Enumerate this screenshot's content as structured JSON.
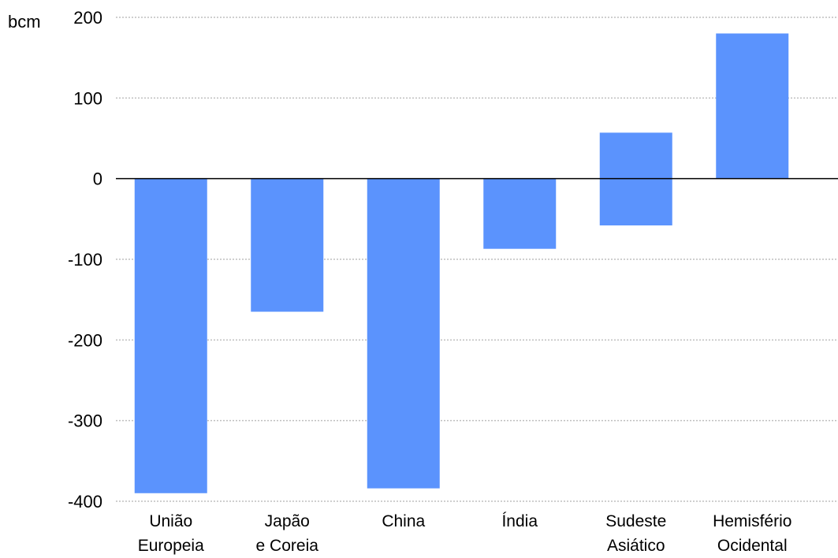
{
  "chart_data": {
    "type": "bar",
    "unit_label": "bcm",
    "categories": [
      [
        "União",
        "Europeia"
      ],
      [
        "Japão",
        "e Coreia"
      ],
      [
        "China"
      ],
      [
        "Índia"
      ],
      [
        "Sudeste",
        "Asiático"
      ],
      [
        "Hemisfério",
        "Ocidental"
      ]
    ],
    "series": [
      {
        "name": "",
        "segments": [
          [
            {
              "from": 0,
              "to": -390
            }
          ],
          [
            {
              "from": 0,
              "to": -165
            }
          ],
          [
            {
              "from": 0,
              "to": -384
            }
          ],
          [
            {
              "from": 0,
              "to": -87
            }
          ],
          [
            {
              "from": 0,
              "to": 57
            },
            {
              "from": 0,
              "to": -58
            }
          ],
          [
            {
              "from": 0,
              "to": 180
            }
          ]
        ]
      }
    ],
    "ylim": [
      -400,
      200
    ],
    "yticks": [
      -400,
      -300,
      -200,
      -100,
      0,
      100,
      200
    ],
    "ytick_labels": [
      "-400",
      "-300",
      "-200",
      "-100",
      "0",
      "100",
      "200"
    ],
    "grid": true,
    "grid_style": "dotted",
    "bar_color": "#5b93fd",
    "grid_color": "#bfbfbf",
    "zero_line_color": "#000000",
    "legend": false
  }
}
